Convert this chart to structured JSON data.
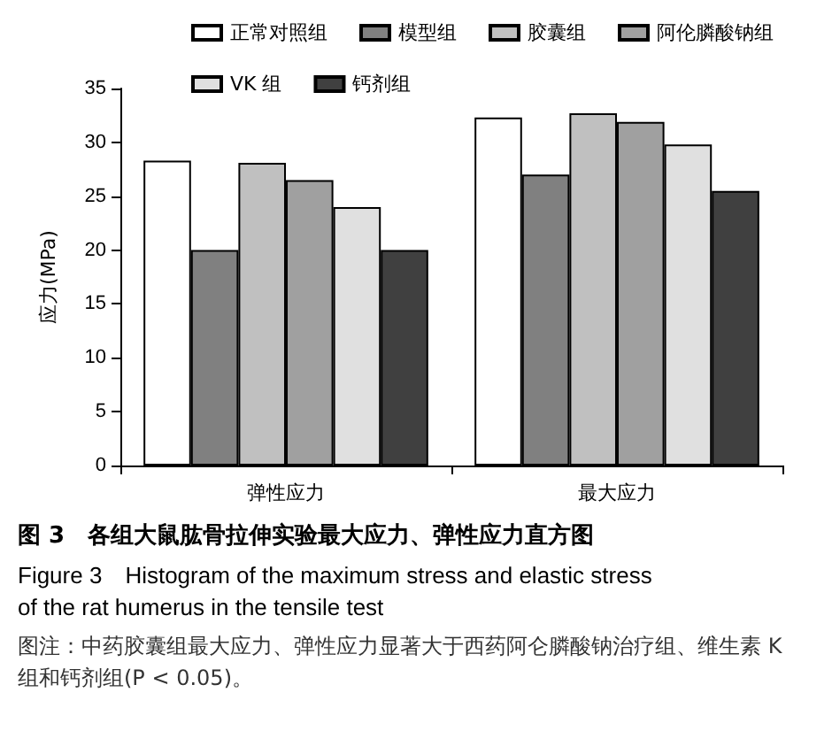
{
  "chart_data": {
    "type": "bar",
    "title": "图 3　各组大鼠肱骨拉伸实验最大应力、弹性应力直方图",
    "subtitle": "Figure 3　Histogram of the maximum stress and elastic stress of the rat humerus in the tensile test",
    "ylabel": "应力(MPa)",
    "annotations": [
      "图注：中药胶囊组最大应力、弹性应力显著大于西药阿仑膦酸钠治疗组、维生素 K 组和钙剂组(P < 0.05)。"
    ],
    "categories": [
      "弹性应力",
      "最大应力"
    ],
    "series": [
      {
        "name": "正常对照组",
        "color": "#ffffff",
        "values": [
          28.3,
          32.3
        ]
      },
      {
        "name": "模型组",
        "color": "#808080",
        "values": [
          20,
          27
        ]
      },
      {
        "name": "胶囊组",
        "color": "#c0c0c0",
        "values": [
          28.1,
          32.7
        ]
      },
      {
        "name": "阿伦膦酸钠组",
        "color": "#a0a0a0",
        "values": [
          26.5,
          31.9
        ]
      },
      {
        "name": "VK 组",
        "color": "#e0e0e0",
        "values": [
          24,
          29.8
        ]
      },
      {
        "name": "钙剂组",
        "color": "#404040",
        "values": [
          20,
          25.5
        ]
      }
    ],
    "ylim": [
      0,
      35
    ],
    "yticks": [
      0,
      5,
      10,
      15,
      20,
      25,
      30,
      35
    ],
    "grid": false,
    "legend": "top"
  }
}
